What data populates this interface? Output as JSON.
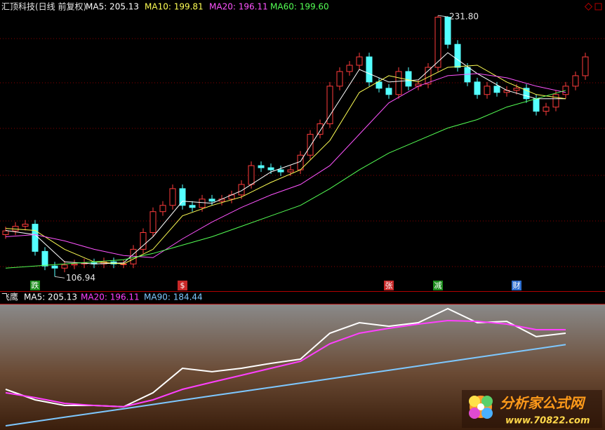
{
  "chart_data": [
    {
      "type": "candlestick",
      "title": "汇顶科技(日线 前复权)",
      "xlim": [
        0,
        59
      ],
      "ylim": [
        100,
        239.2
      ],
      "up_color": "#ff3c3c",
      "down_color": "#54ffff",
      "open": [
        127,
        128.8,
        131,
        132,
        119,
        112,
        111,
        112.5,
        113,
        113.5,
        113,
        114,
        113,
        113,
        120,
        128,
        138,
        141,
        149,
        141,
        140,
        144,
        143,
        144,
        146,
        151,
        160,
        159,
        158,
        157,
        158,
        165,
        175,
        180,
        198,
        205,
        208,
        212,
        200,
        197,
        194,
        205,
        198,
        199,
        207,
        231,
        218,
        207,
        200,
        194,
        198,
        195,
        196,
        197,
        192,
        186,
        188,
        194,
        198,
        203
      ],
      "close": [
        128.8,
        131,
        132,
        119,
        112,
        111,
        112.5,
        113,
        113.5,
        113,
        114,
        113,
        113,
        120,
        128,
        138,
        141,
        149,
        141,
        140,
        144,
        143,
        144,
        146,
        151,
        160,
        159,
        158,
        157,
        158,
        165,
        175,
        180,
        198,
        205,
        208,
        212,
        200,
        197,
        194,
        205,
        198,
        199,
        207,
        231,
        218,
        207,
        200,
        194,
        198,
        195,
        196,
        197,
        192,
        186,
        188,
        194,
        198,
        203,
        212
      ],
      "high": [
        130.8,
        133,
        134,
        134,
        121,
        114,
        114.5,
        115,
        115.5,
        115.5,
        116,
        116,
        115,
        122,
        130,
        140,
        143,
        151,
        151,
        143,
        146,
        146,
        146,
        148,
        153,
        162,
        162,
        161,
        160,
        160,
        167,
        177,
        182,
        200,
        207,
        210,
        214,
        214,
        202,
        199,
        207,
        207,
        201,
        209,
        231.8,
        231.5,
        220,
        209,
        202,
        200,
        200,
        198,
        199,
        199,
        194,
        190,
        196,
        200,
        205,
        214
      ],
      "low": [
        125,
        126.8,
        129,
        117,
        110,
        106.94,
        109,
        110.5,
        111,
        111,
        111,
        111,
        111,
        111,
        118,
        126,
        136,
        139,
        139,
        138,
        138,
        141,
        141,
        142,
        144,
        149,
        157,
        156,
        155,
        155,
        156,
        163,
        173,
        178,
        196,
        203,
        206,
        198,
        195,
        192,
        192,
        196,
        196,
        197,
        205,
        216,
        205,
        198,
        192,
        192,
        193,
        193,
        194,
        190,
        184,
        184,
        186,
        192,
        196,
        201
      ],
      "ma_x": [
        0,
        3,
        6,
        9,
        12,
        15,
        18,
        21,
        24,
        27,
        30,
        33,
        36,
        39,
        42,
        45,
        48,
        51,
        54,
        57
      ],
      "series": [
        {
          "name": "MA5: 205.13",
          "color": "#ffffff",
          "values": [
            129,
            127,
            114,
            113,
            113.5,
            126,
            143,
            142,
            148,
            157,
            162,
            184,
            206,
            200,
            201,
            214,
            204,
            196,
            192,
            192
          ]
        },
        {
          "name": "MA10: 199.81",
          "color": "#ffff54",
          "values": [
            130,
            129,
            120,
            114,
            113,
            120,
            136,
            141,
            145,
            152,
            158,
            172,
            195,
            203,
            200,
            207,
            208,
            200,
            194,
            192
          ]
        },
        {
          "name": "MA20: 196.11",
          "color": "#ff54ff",
          "values": [
            126,
            127,
            124,
            120,
            117,
            116,
            125,
            133,
            140,
            146,
            151,
            160,
            175,
            190,
            198,
            203,
            204,
            202,
            198,
            195
          ]
        },
        {
          "name": "MA60: 199.60",
          "color": "#54ff54",
          "values": [
            111,
            112,
            113,
            114,
            115,
            118,
            122,
            126,
            131,
            136,
            141,
            149,
            158,
            166,
            172,
            178,
            182,
            188,
            192,
            196
          ]
        }
      ],
      "annotations": [
        {
          "text": "231.80",
          "value": 231.8,
          "x": 44
        },
        {
          "text": "106.94",
          "value": 106.94,
          "x": 5
        }
      ],
      "events": [
        {
          "label": "跌",
          "x": 3,
          "color": "#1c8c1c"
        },
        {
          "label": "$",
          "x": 18,
          "color": "#c82828"
        },
        {
          "label": "张",
          "x": 39,
          "color": "#c82828"
        },
        {
          "label": "减",
          "x": 44,
          "color": "#1c8c1c"
        },
        {
          "label": "财",
          "x": 52,
          "color": "#2e6fd0"
        }
      ]
    },
    {
      "type": "line",
      "title": "飞鹰",
      "xlim": [
        0,
        59
      ],
      "ylim": [
        98,
        221.5
      ],
      "x": [
        0,
        3,
        6,
        9,
        12,
        15,
        18,
        21,
        24,
        27,
        30,
        33,
        36,
        39,
        42,
        45,
        48,
        51,
        54,
        57
      ],
      "series": [
        {
          "name": "MA5: 205.13",
          "color": "#ffffff",
          "values": [
            137.8,
            127.5,
            122.0,
            122.0,
            120.7,
            134.4,
            158.4,
            155.0,
            158.4,
            163.2,
            167.3,
            192.7,
            203.0,
            199.5,
            203.0,
            216.7,
            203.0,
            204.3,
            189.3,
            192.7
          ]
        },
        {
          "name": "MA20: 196.11",
          "color": "#ff40ff",
          "values": [
            134.4,
            129.6,
            124.1,
            122.0,
            120.7,
            127.5,
            137.8,
            144.7,
            151.5,
            158.4,
            165.2,
            182.4,
            192.7,
            197.5,
            201.6,
            205.0,
            204.3,
            201.6,
            196.1,
            196.1
          ]
        },
        {
          "name": "MA90: 184.44",
          "color": "#7ec8ff",
          "values": [
            102.1,
            106.3,
            110.5,
            114.6,
            118.8,
            123.0,
            127.2,
            131.4,
            135.5,
            139.7,
            143.9,
            148.1,
            152.3,
            156.4,
            160.6,
            164.8,
            169.0,
            173.2,
            177.3,
            181.5
          ]
        }
      ]
    }
  ],
  "watermark": {
    "title": "分析家公式网",
    "url": "www.70822.com"
  }
}
